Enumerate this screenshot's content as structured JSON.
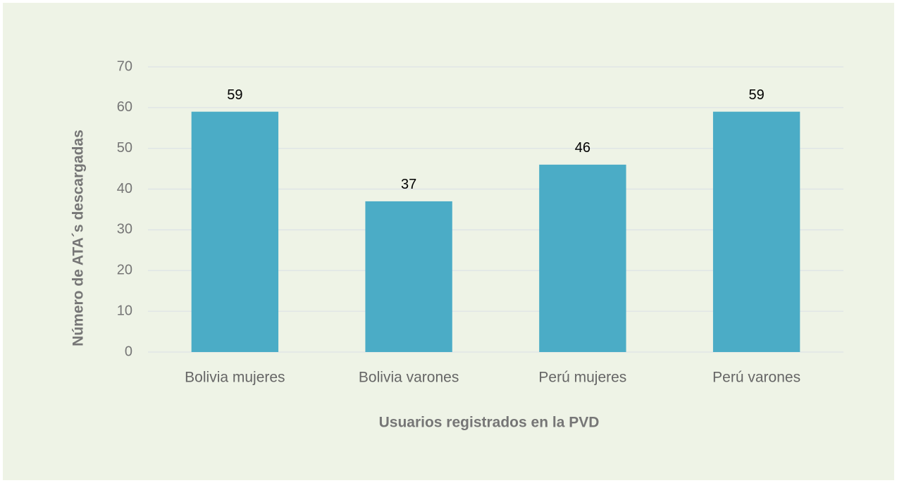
{
  "chart_data": {
    "type": "bar",
    "x_label": "Usuarios registrados en la PVD",
    "y_label": "Número de ATA´s descargadas",
    "categories": [
      "Bolivia mujeres",
      "Bolivia varones",
      "Perú mujeres",
      "Perú varones"
    ],
    "values": [
      59,
      37,
      46,
      59
    ],
    "color": "#4bacc6",
    "ylim": [
      0,
      70
    ],
    "yticks": [
      0,
      10,
      20,
      30,
      40,
      50,
      60,
      70
    ],
    "grid": true,
    "data_labels": true
  }
}
